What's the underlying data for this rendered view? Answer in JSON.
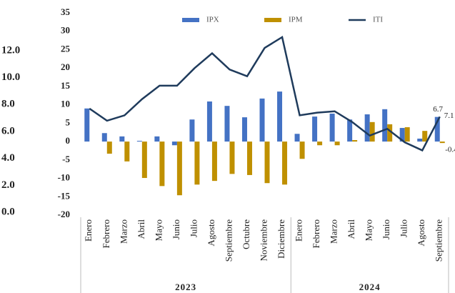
{
  "chart_data": {
    "type": "bar-line",
    "category_groups": [
      {
        "label": "2023",
        "categories": [
          "Enero",
          "Febrero",
          "Marzo",
          "Abril",
          "Mayo",
          "Junio",
          "Julio",
          "Agosto",
          "Septiembre",
          "Octubre",
          "Noviembre",
          "Diciembre"
        ]
      },
      {
        "label": "2024",
        "categories": [
          "Enero",
          "Febrero",
          "Marzo",
          "Abril",
          "Mayo",
          "Junio",
          "Julio",
          "Agosto",
          "Septiembre"
        ]
      }
    ],
    "series": [
      {
        "name": "IPX",
        "type": "bar",
        "color": "#4472c4",
        "data_labels": "last",
        "values": [
          9.0,
          2.3,
          1.4,
          0.2,
          1.4,
          -1.0,
          6.0,
          10.9,
          9.7,
          6.6,
          11.7,
          13.6,
          2.1,
          6.8,
          7.6,
          6.0,
          7.4,
          8.8,
          3.7,
          0.8,
          6.7
        ]
      },
      {
        "name": "IPM",
        "type": "bar",
        "color": "#bf9000",
        "data_labels": "last",
        "values": [
          0,
          -3.3,
          -5.4,
          -9.9,
          -12.1,
          -14.6,
          -11.7,
          -10.7,
          -8.8,
          -9.1,
          -11.3,
          -11.7,
          -4.7,
          -1.0,
          -1.0,
          0.4,
          5.3,
          4.7,
          3.9,
          2.9,
          -0.4
        ]
      },
      {
        "name": "ITI",
        "type": "line",
        "axis": "y2",
        "color": "#1f3b5c",
        "data_labels": "last",
        "values": [
          7.7,
          6.8,
          7.2,
          8.4,
          9.4,
          9.4,
          10.7,
          11.8,
          10.6,
          10.1,
          12.2,
          13.0,
          7.2,
          7.4,
          7.5,
          6.7,
          5.7,
          6.2,
          5.2,
          4.6,
          7.1
        ]
      }
    ],
    "ylim": [
      -20,
      35
    ],
    "yticks": [
      -20,
      -15,
      -10,
      -5,
      0,
      5,
      10,
      15,
      20,
      25,
      30,
      35
    ],
    "y2lim": [
      -0.2,
      14.8
    ],
    "y2ticks": [
      {
        "value": 0,
        "label": "0.0"
      },
      {
        "value": 2,
        "label": "2.0"
      },
      {
        "value": 4,
        "label": "4.0"
      },
      {
        "value": 6,
        "label": "6.0"
      },
      {
        "value": 8,
        "label": "8.0"
      },
      {
        "value": 10,
        "label": "10.0"
      },
      {
        "value": 12,
        "label": "12.0"
      }
    ],
    "legend": "top",
    "grid": false
  }
}
